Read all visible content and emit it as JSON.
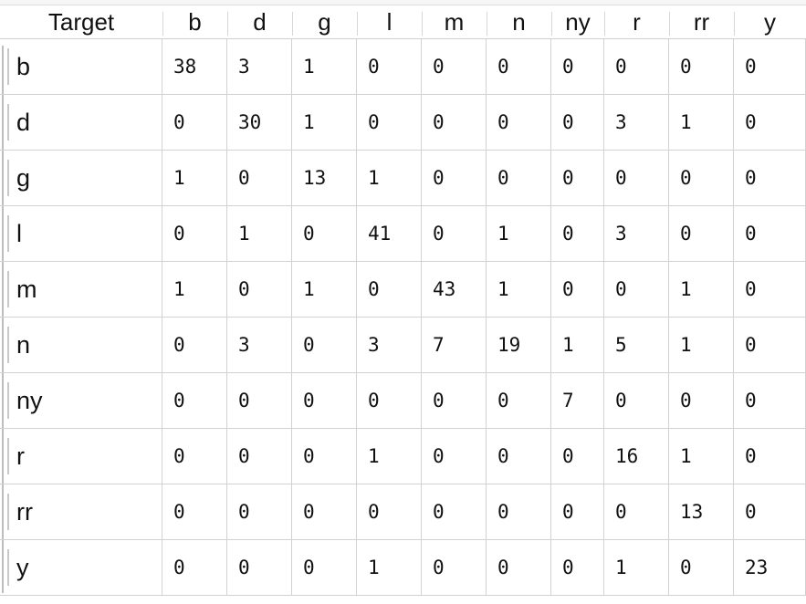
{
  "table": {
    "corner_header": "Target",
    "columns": [
      "b",
      "d",
      "g",
      "l",
      "m",
      "n",
      "ny",
      "r",
      "rr",
      "y"
    ],
    "rows": [
      {
        "label": "b",
        "values": [
          "38",
          "3",
          "1",
          "0",
          "0",
          "0",
          "0",
          "0",
          "0",
          "0"
        ]
      },
      {
        "label": "d",
        "values": [
          "0",
          "30",
          "1",
          "0",
          "0",
          "0",
          "0",
          "3",
          "1",
          "0"
        ]
      },
      {
        "label": "g",
        "values": [
          "1",
          "0",
          "13",
          "1",
          "0",
          "0",
          "0",
          "0",
          "0",
          "0"
        ]
      },
      {
        "label": "l",
        "values": [
          "0",
          "1",
          "0",
          "41",
          "0",
          "1",
          "0",
          "3",
          "0",
          "0"
        ]
      },
      {
        "label": "m",
        "values": [
          "1",
          "0",
          "1",
          "0",
          "43",
          "1",
          "0",
          "0",
          "1",
          "0"
        ]
      },
      {
        "label": "n",
        "values": [
          "0",
          "3",
          "0",
          "3",
          "7",
          "19",
          "1",
          "5",
          "1",
          "0"
        ]
      },
      {
        "label": "ny",
        "values": [
          "0",
          "0",
          "0",
          "0",
          "0",
          "0",
          "7",
          "0",
          "0",
          "0"
        ]
      },
      {
        "label": "r",
        "values": [
          "0",
          "0",
          "0",
          "1",
          "0",
          "0",
          "0",
          "16",
          "1",
          "0"
        ]
      },
      {
        "label": "rr",
        "values": [
          "0",
          "0",
          "0",
          "0",
          "0",
          "0",
          "0",
          "0",
          "13",
          "0"
        ]
      },
      {
        "label": "y",
        "values": [
          "0",
          "0",
          "0",
          "1",
          "0",
          "0",
          "0",
          "1",
          "0",
          "23"
        ]
      }
    ]
  }
}
